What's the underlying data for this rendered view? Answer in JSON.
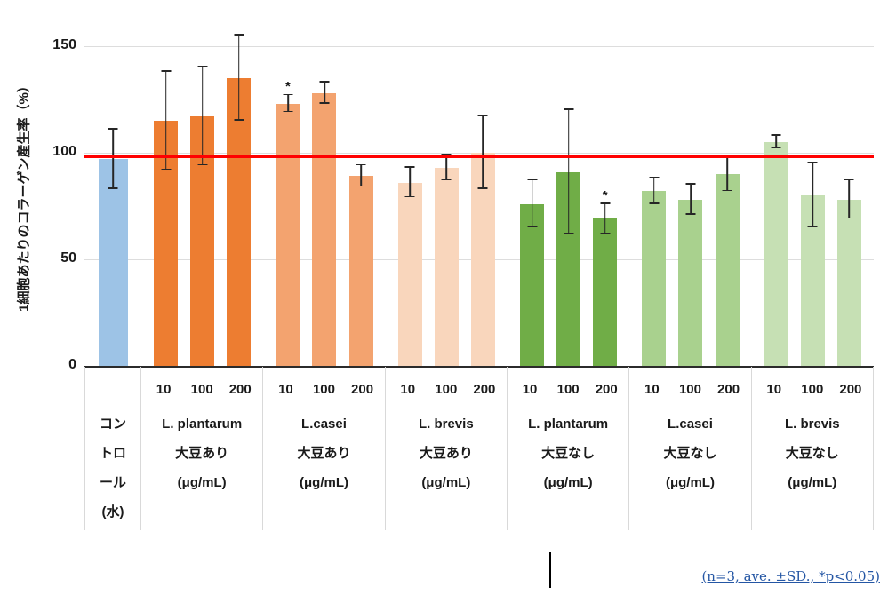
{
  "chart_data": {
    "type": "bar",
    "title": "",
    "ylabel": "1細胞あたりのコラーゲン産生率（%）",
    "xlabel": "",
    "ylim": [
      0,
      160
    ],
    "yticks": [
      0,
      50,
      100,
      150
    ],
    "grid": true,
    "legend_position": "none",
    "reference_line": {
      "value": 98,
      "color": "#FF0000"
    },
    "annotation": "(n=3, ave. ±SD., *p<0.05)",
    "error_bar_color": "#262626",
    "groups": [
      {
        "name": "control-water",
        "label_lines": [
          "コン",
          "トロ",
          "ール",
          "(水)"
        ],
        "color": "#9DC3E6",
        "bars": [
          {
            "conc": "",
            "value": 97,
            "err": 14,
            "sig": ""
          }
        ]
      },
      {
        "name": "l-plantarum-soy",
        "label_lines": [
          "L. plantarum",
          "大豆あり",
          "(μg/mL)"
        ],
        "color": "#ED7D31",
        "bars": [
          {
            "conc": "10",
            "value": 115,
            "err": 23,
            "sig": ""
          },
          {
            "conc": "100",
            "value": 117,
            "err": 23,
            "sig": ""
          },
          {
            "conc": "200",
            "value": 135,
            "err": 20,
            "sig": ""
          }
        ]
      },
      {
        "name": "l-casei-soy",
        "label_lines": [
          "L.casei",
          "大豆あり",
          "(μg/mL)"
        ],
        "color": "#F3A36F",
        "bars": [
          {
            "conc": "10",
            "value": 123,
            "err": 4,
            "sig": "*"
          },
          {
            "conc": "100",
            "value": 128,
            "err": 5,
            "sig": ""
          },
          {
            "conc": "200",
            "value": 89,
            "err": 5,
            "sig": ""
          }
        ]
      },
      {
        "name": "l-brevis-soy",
        "label_lines": [
          "L. brevis",
          "大豆あり",
          "(μg/mL)"
        ],
        "color": "#F9D6BC",
        "bars": [
          {
            "conc": "10",
            "value": 86,
            "err": 7,
            "sig": ""
          },
          {
            "conc": "100",
            "value": 93,
            "err": 6,
            "sig": ""
          },
          {
            "conc": "200",
            "value": 100,
            "err": 17,
            "sig": ""
          }
        ]
      },
      {
        "name": "l-plantarum-no-soy",
        "label_lines": [
          "L. plantarum",
          "大豆なし",
          "(μg/mL)"
        ],
        "color": "#70AD47",
        "bars": [
          {
            "conc": "10",
            "value": 76,
            "err": 11,
            "sig": ""
          },
          {
            "conc": "100",
            "value": 91,
            "err": 29,
            "sig": ""
          },
          {
            "conc": "200",
            "value": 69,
            "err": 7,
            "sig": "*"
          }
        ]
      },
      {
        "name": "l-casei-no-soy",
        "label_lines": [
          "L.casei",
          "大豆なし",
          "(μg/mL)"
        ],
        "color": "#A9D18E",
        "bars": [
          {
            "conc": "10",
            "value": 82,
            "err": 6,
            "sig": ""
          },
          {
            "conc": "100",
            "value": 78,
            "err": 7,
            "sig": ""
          },
          {
            "conc": "200",
            "value": 90,
            "err": 8,
            "sig": ""
          }
        ]
      },
      {
        "name": "l-brevis-no-soy",
        "label_lines": [
          "L. brevis",
          "大豆なし",
          "(μg/mL)"
        ],
        "color": "#C6E0B4",
        "bars": [
          {
            "conc": "10",
            "value": 105,
            "err": 3,
            "sig": ""
          },
          {
            "conc": "100",
            "value": 80,
            "err": 15,
            "sig": ""
          },
          {
            "conc": "200",
            "value": 78,
            "err": 9,
            "sig": ""
          }
        ]
      }
    ]
  }
}
